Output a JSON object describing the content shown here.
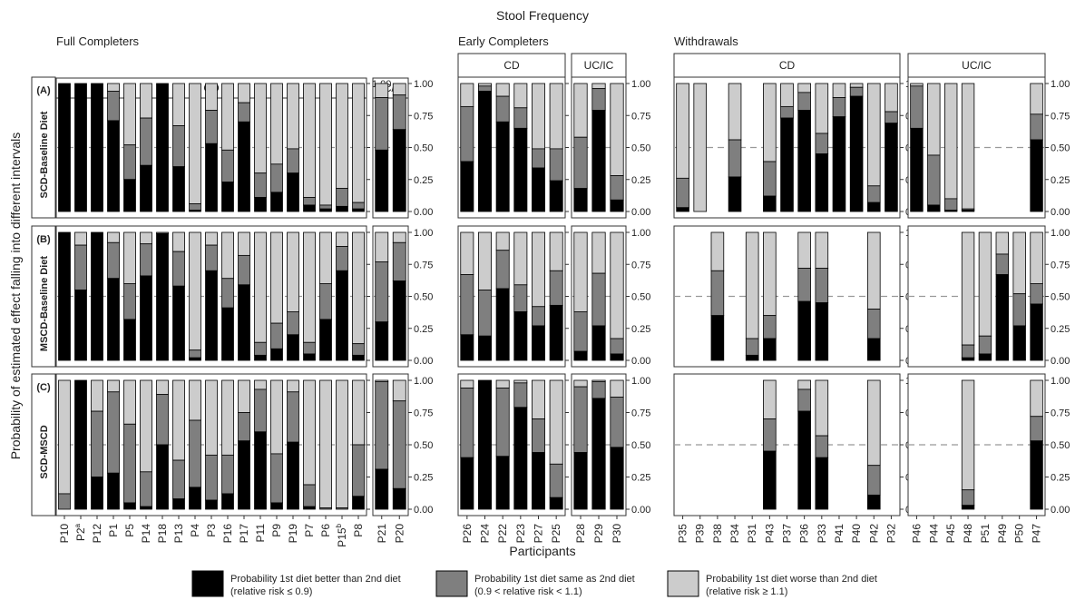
{
  "chart_data": {
    "type": "bar",
    "stacked": true,
    "title": "Stool Frequency",
    "xlabel": "Participants",
    "ylabel": "Probability of estimated effect falling into different intervals",
    "ylim": [
      0,
      1
    ],
    "yticks": [
      "0.00",
      "0.25",
      "0.50",
      "0.75",
      "1.00"
    ],
    "reference_line": 0.5,
    "groups": [
      {
        "title": "Full Completers",
        "subgroups": [
          {
            "label": "CD",
            "participants": [
              "P10",
              "P2",
              "P12",
              "P1",
              "P5",
              "P14",
              "P18",
              "P13",
              "P4",
              "P3",
              "P16",
              "P17",
              "P11",
              "P9",
              "P19",
              "P7",
              "P6",
              "P15",
              "P8"
            ]
          },
          {
            "label": "UC/IC",
            "participants": [
              "P21",
              "P20"
            ]
          }
        ]
      },
      {
        "title": "Early Completers",
        "subgroups": [
          {
            "label": "CD",
            "participants": [
              "P26",
              "P24",
              "P22",
              "P23",
              "P27",
              "P25"
            ]
          },
          {
            "label": "UC/IC",
            "participants": [
              "P28",
              "P29",
              "P30"
            ]
          }
        ]
      },
      {
        "title": "Withdrawals",
        "subgroups": [
          {
            "label": "CD",
            "participants": [
              "P35",
              "P39",
              "P38",
              "P34",
              "P31",
              "P43",
              "P37",
              "P36",
              "P33",
              "P41",
              "P40",
              "P42",
              "P32"
            ]
          },
          {
            "label": "UC/IC",
            "participants": [
              "P46",
              "P44",
              "P45",
              "P48",
              "P51",
              "P49",
              "P50",
              "P47"
            ]
          }
        ]
      }
    ],
    "superscripts": {
      "P2": "a",
      "P15": "b"
    },
    "rows": [
      {
        "tag": "(A)",
        "label": "SCD-Baseline Diet",
        "data": {
          "P10": [
            1.0,
            0.0
          ],
          "P2": [
            1.0,
            0.0
          ],
          "P12": [
            1.0,
            0.0
          ],
          "P1": [
            0.71,
            0.94
          ],
          "P5": [
            0.25,
            0.52
          ],
          "P14": [
            0.36,
            0.73
          ],
          "P18": [
            1.0,
            0.0
          ],
          "P13": [
            0.35,
            0.67
          ],
          "P4": [
            0.01,
            0.06
          ],
          "P3": [
            0.53,
            0.79
          ],
          "P16": [
            0.23,
            0.48
          ],
          "P17": [
            0.7,
            0.85
          ],
          "P11": [
            0.11,
            0.3
          ],
          "P9": [
            0.15,
            0.37
          ],
          "P19": [
            0.3,
            0.49
          ],
          "P7": [
            0.05,
            0.11
          ],
          "P6": [
            0.02,
            0.05
          ],
          "P15": [
            0.04,
            0.18
          ],
          "P8": [
            0.02,
            0.07
          ],
          "P21": [
            0.48,
            0.89
          ],
          "P20": [
            0.64,
            0.91
          ],
          "P26": [
            0.39,
            0.82
          ],
          "P24": [
            0.94,
            0.98
          ],
          "P22": [
            0.7,
            0.9
          ],
          "P23": [
            0.65,
            0.81
          ],
          "P27": [
            0.34,
            0.49
          ],
          "P25": [
            0.24,
            0.49
          ],
          "P28": [
            0.18,
            0.58
          ],
          "P29": [
            0.79,
            0.96
          ],
          "P30": [
            0.09,
            0.28
          ],
          "P35": [
            0.03,
            0.26
          ],
          "P39": [
            0.0,
            0.0
          ],
          "P38": null,
          "P34": [
            0.27,
            0.56
          ],
          "P31": null,
          "P43": [
            0.12,
            0.39
          ],
          "P37": [
            0.73,
            0.82
          ],
          "P36": [
            0.79,
            0.93
          ],
          "P33": [
            0.45,
            0.61
          ],
          "P41": [
            0.74,
            0.89
          ],
          "P40": [
            0.9,
            0.97
          ],
          "P42": [
            0.07,
            0.2
          ],
          "P32": [
            0.69,
            0.78
          ],
          "P46": [
            0.65,
            0.98
          ],
          "P44": [
            0.05,
            0.44
          ],
          "P45": [
            0.01,
            0.1
          ],
          "P48": [
            0.01,
            0.02
          ],
          "P51": null,
          "P49": null,
          "P50": null,
          "P47": [
            0.56,
            0.76
          ]
        }
      },
      {
        "tag": "(B)",
        "label": "MSCD-Baseline Diet",
        "data": {
          "P10": [
            1.0,
            0.0
          ],
          "P2": [
            0.55,
            0.9
          ],
          "P12": [
            1.0,
            0.0
          ],
          "P1": [
            0.64,
            0.92
          ],
          "P5": [
            0.32,
            0.6
          ],
          "P14": [
            0.66,
            0.91
          ],
          "P18": [
            0.99,
            1.0
          ],
          "P13": [
            0.58,
            0.85
          ],
          "P4": [
            0.02,
            0.08
          ],
          "P3": [
            0.7,
            0.9
          ],
          "P16": [
            0.41,
            0.64
          ],
          "P17": [
            0.59,
            0.82
          ],
          "P11": [
            0.04,
            0.14
          ],
          "P9": [
            0.09,
            0.29
          ],
          "P19": [
            0.2,
            0.38
          ],
          "P7": [
            0.05,
            0.14
          ],
          "P6": [
            0.32,
            0.6
          ],
          "P15": [
            0.7,
            0.89
          ],
          "P8": [
            0.04,
            0.13
          ],
          "P21": [
            0.3,
            0.77
          ],
          "P20": [
            0.62,
            0.92
          ],
          "P26": [
            0.2,
            0.67
          ],
          "P24": [
            0.19,
            0.55
          ],
          "P22": [
            0.56,
            0.86
          ],
          "P23": [
            0.38,
            0.59
          ],
          "P27": [
            0.27,
            0.42
          ],
          "P25": [
            0.43,
            0.7
          ],
          "P28": [
            0.07,
            0.38
          ],
          "P29": [
            0.27,
            0.68
          ],
          "P30": [
            0.05,
            0.17
          ],
          "P35": null,
          "P39": null,
          "P38": [
            0.35,
            0.7
          ],
          "P34": null,
          "P31": [
            0.04,
            0.17
          ],
          "P43": [
            0.17,
            0.35
          ],
          "P37": null,
          "P36": [
            0.46,
            0.72
          ],
          "P33": [
            0.45,
            0.72
          ],
          "P41": null,
          "P40": null,
          "P42": [
            0.17,
            0.4
          ],
          "P32": null,
          "P46": null,
          "P44": null,
          "P45": null,
          "P48": [
            0.02,
            0.12
          ],
          "P51": [
            0.05,
            0.19
          ],
          "P49": [
            0.67,
            0.83
          ],
          "P50": [
            0.27,
            0.52
          ],
          "P47": [
            0.44,
            0.6
          ]
        }
      },
      {
        "tag": "(C)",
        "label": "SCD-MSCD",
        "data": {
          "P10": [
            0.0,
            0.12
          ],
          "P2": [
            1.0,
            0.0
          ],
          "P12": [
            0.25,
            0.76
          ],
          "P1": [
            0.28,
            0.91
          ],
          "P5": [
            0.05,
            0.66
          ],
          "P14": [
            0.02,
            0.29
          ],
          "P18": [
            0.5,
            0.89
          ],
          "P13": [
            0.08,
            0.38
          ],
          "P4": [
            0.17,
            0.69
          ],
          "P3": [
            0.07,
            0.42
          ],
          "P16": [
            0.12,
            0.42
          ],
          "P17": [
            0.53,
            0.75
          ],
          "P11": [
            0.6,
            0.93
          ],
          "P9": [
            0.05,
            0.43
          ],
          "P19": [
            0.52,
            0.91
          ],
          "P7": [
            0.02,
            0.19
          ],
          "P6": [
            0.0,
            0.01
          ],
          "P15": [
            0.0,
            0.01
          ],
          "P8": [
            0.1,
            0.5
          ],
          "P21": [
            0.31,
            0.99
          ],
          "P20": [
            0.16,
            0.84
          ],
          "P26": [
            0.4,
            0.94
          ],
          "P24": [
            1.0,
            0.0
          ],
          "P22": [
            0.41,
            0.94
          ],
          "P23": [
            0.79,
            0.98
          ],
          "P27": [
            0.44,
            0.7
          ],
          "P25": [
            0.09,
            0.35
          ],
          "P28": [
            0.44,
            0.95
          ],
          "P29": [
            0.86,
            0.99
          ],
          "P30": [
            0.48,
            0.87
          ],
          "P35": null,
          "P39": null,
          "P38": null,
          "P34": null,
          "P31": null,
          "P43": [
            0.45,
            0.7
          ],
          "P37": null,
          "P36": [
            0.76,
            0.93
          ],
          "P33": [
            0.4,
            0.57
          ],
          "P41": null,
          "P40": null,
          "P42": [
            0.11,
            0.34
          ],
          "P32": null,
          "P46": null,
          "P44": null,
          "P45": null,
          "P48": [
            0.03,
            0.15
          ],
          "P51": null,
          "P49": null,
          "P50": null,
          "P47": [
            0.53,
            0.72
          ]
        }
      }
    ],
    "legend": [
      {
        "label": "Probability 1st diet better than 2nd diet",
        "sub": "(relative risk ≤ 0.9)",
        "color": "#000000"
      },
      {
        "label": "Probability 1st diet same as 2nd diet",
        "sub": "(0.9 < relative risk < 1.1)",
        "color": "#7f7f7f"
      },
      {
        "label": "Probability 1st diet worse than 2nd diet",
        "sub": "(relative risk ≥ 1.1)",
        "color": "#cccccc"
      }
    ]
  }
}
